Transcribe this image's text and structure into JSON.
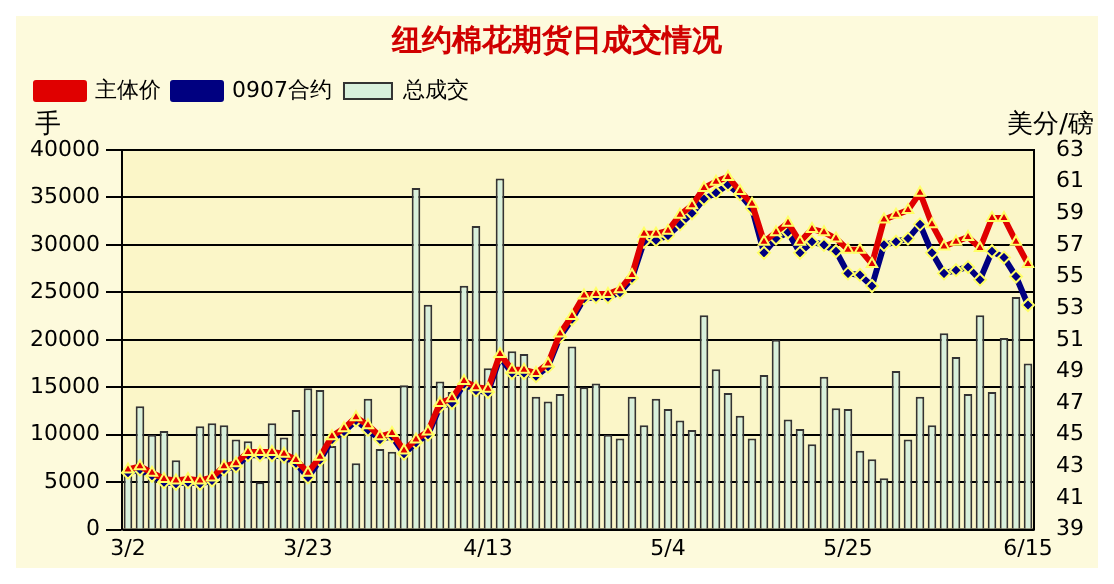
{
  "chart_data": {
    "type": "bar",
    "title": "纽约棉花期货日成交情况",
    "ylabel": "手",
    "y2label": "美分/磅",
    "categories": [
      "3/2",
      null,
      null,
      null,
      null,
      null,
      null,
      null,
      null,
      null,
      null,
      null,
      null,
      null,
      null,
      "3/23",
      null,
      null,
      null,
      null,
      null,
      null,
      null,
      null,
      null,
      null,
      null,
      null,
      null,
      null,
      "4/13",
      null,
      null,
      null,
      null,
      null,
      null,
      null,
      null,
      null,
      null,
      null,
      null,
      null,
      null,
      "5/4",
      null,
      null,
      null,
      null,
      null,
      null,
      null,
      null,
      null,
      null,
      null,
      null,
      null,
      null,
      "5/25",
      null,
      null,
      null,
      null,
      null,
      null,
      null,
      null,
      null,
      null,
      null,
      null,
      null,
      null,
      "6/15"
    ],
    "series": [
      {
        "name": "总成交",
        "color": "#d8f0dc",
        "values": [
          6000,
          13000,
          10000,
          10400,
          7300,
          5000,
          10900,
          11200,
          11000,
          9500,
          9300,
          5000,
          11200,
          9700,
          12600,
          14900,
          14700,
          8800,
          10500,
          7000,
          13800,
          8500,
          8200,
          15200,
          36000,
          23700,
          15600,
          14500,
          25700,
          32000,
          17000,
          37000,
          18800,
          18500,
          14000,
          13500,
          14300,
          19300,
          15000,
          15400,
          10000,
          9600,
          14000,
          11000,
          13800,
          12700,
          11500,
          10500,
          22600,
          16900,
          14400,
          12000,
          9600,
          16300,
          20000,
          11600,
          10600,
          9000,
          16100,
          12800,
          12700,
          8300,
          7400,
          5400,
          16700,
          9500,
          14000,
          11000,
          20700,
          18200,
          14300,
          22600,
          14500,
          20200,
          24500,
          17500
        ]
      },
      {
        "name": "主体价",
        "type": "line",
        "axis": "y2",
        "color": "#e00000",
        "marker": "triangle",
        "values": [
          42.8,
          43,
          42.6,
          42.2,
          42.1,
          42.2,
          42.1,
          42.3,
          43,
          43.2,
          43.9,
          43.9,
          43.9,
          43.8,
          43.4,
          42.6,
          43.6,
          44.9,
          45.4,
          46.1,
          45.6,
          44.9,
          45.1,
          44,
          44.7,
          45.2,
          47,
          47.3,
          48.4,
          48,
          47.9,
          50.1,
          49.1,
          49.1,
          48.9,
          49.5,
          51.4,
          52.5,
          53.8,
          53.9,
          53.9,
          54.2,
          55.1,
          57.7,
          57.7,
          57.9,
          58.9,
          59.5,
          60.6,
          61,
          61.3,
          60.4,
          59.6,
          57.2,
          57.8,
          58.4,
          57.2,
          58,
          57.8,
          57.4,
          56.7,
          56.7,
          55.8,
          58.6,
          58.9,
          59.2,
          60.3,
          58.3,
          56.9,
          57.2,
          57.5,
          56.8,
          58.7,
          58.7,
          57.2,
          55.8
        ]
      },
      {
        "name": "0907合约",
        "type": "line",
        "axis": "y2",
        "color": "#000080",
        "marker": "diamond",
        "values": [
          42.6,
          42.8,
          42.4,
          42,
          41.9,
          42,
          41.9,
          42.1,
          42.8,
          43,
          43.7,
          43.7,
          43.7,
          43.6,
          43.2,
          42.3,
          43.4,
          44.7,
          45.2,
          45.9,
          45.3,
          44.7,
          44.9,
          43.8,
          44.5,
          45,
          46.8,
          47,
          48.2,
          47.8,
          47.7,
          49.9,
          48.9,
          48.9,
          48.7,
          49.3,
          51.2,
          52.3,
          53.6,
          53.7,
          53.7,
          54,
          54.9,
          57.2,
          57.3,
          57.6,
          58.3,
          59,
          59.9,
          60.3,
          60.8,
          60.2,
          59.3,
          56.5,
          57.4,
          57.8,
          56.5,
          57.2,
          57,
          56.6,
          55.2,
          55.1,
          54.4,
          57,
          57.2,
          57.4,
          58.3,
          56.5,
          55.2,
          55.4,
          55.6,
          54.8,
          56.6,
          56.2,
          55,
          53.2
        ]
      }
    ],
    "ylim": [
      0,
      40000
    ],
    "yticks": [
      0,
      5000,
      10000,
      15000,
      20000,
      25000,
      30000,
      35000,
      40000
    ],
    "y2lim": [
      39,
      63
    ],
    "y2ticks": [
      39,
      41,
      43,
      45,
      47,
      49,
      51,
      53,
      55,
      57,
      59,
      61,
      63
    ],
    "grid": "y",
    "legend": "top left"
  }
}
